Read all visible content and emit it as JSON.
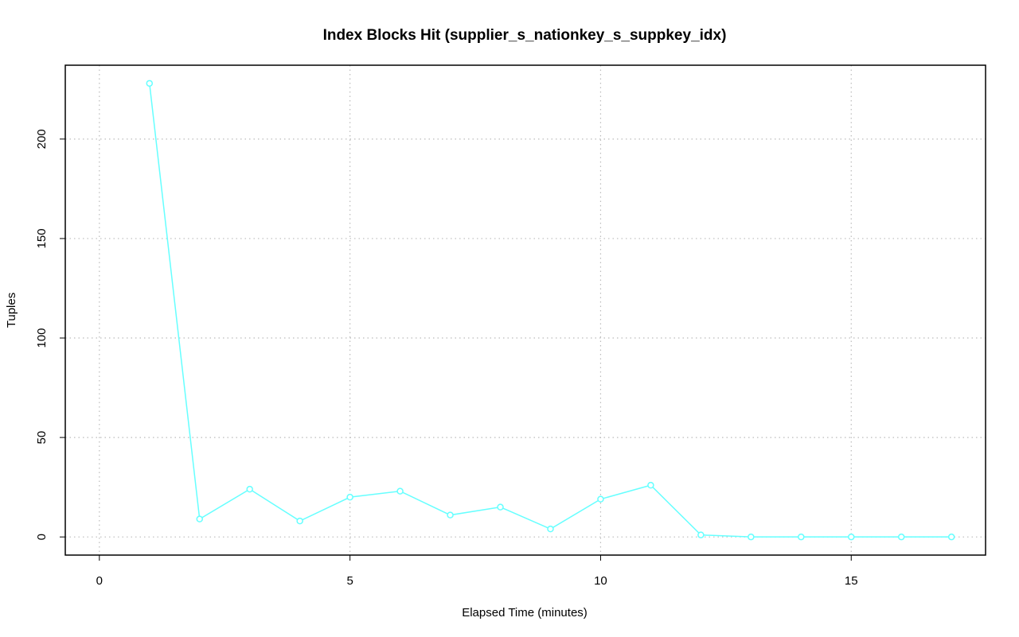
{
  "chart_data": {
    "type": "line",
    "title": "Index Blocks Hit (supplier_s_nationkey_s_suppkey_idx)",
    "x_label": "Elapsed Time (minutes)",
    "y_label": "Tuples",
    "x": [
      1,
      2,
      3,
      4,
      5,
      6,
      7,
      8,
      9,
      10,
      11,
      12,
      13,
      14,
      15,
      16,
      17
    ],
    "series": [
      {
        "color": "#66ffff",
        "values": [
          228,
          9,
          24,
          8,
          20,
          23,
          11,
          15,
          4,
          19,
          26,
          1,
          0,
          0,
          0,
          0,
          0
        ]
      }
    ],
    "xlim": [
      -0.68,
      17.68
    ],
    "xticks": [
      0,
      5,
      10,
      15
    ],
    "ylim": [
      -9.12,
      237.12
    ],
    "yticks": [
      0,
      50,
      100,
      150,
      200
    ],
    "grid": true
  }
}
